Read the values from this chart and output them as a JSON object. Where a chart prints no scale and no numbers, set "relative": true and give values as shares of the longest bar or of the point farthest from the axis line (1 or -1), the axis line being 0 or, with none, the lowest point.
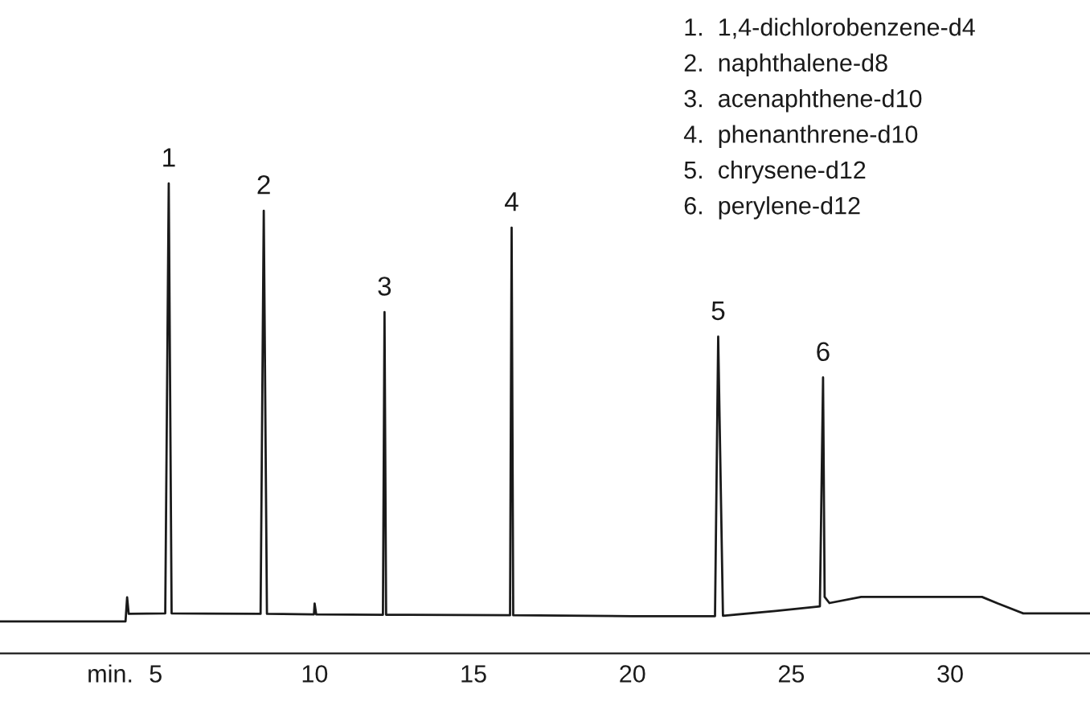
{
  "chart_data": {
    "type": "line",
    "relative": true,
    "xlabel": "min.",
    "xlim": [
      0.1,
      34.4
    ],
    "xticks": [
      5,
      10,
      15,
      20,
      25,
      30
    ],
    "tick_labels": "x",
    "grid": false,
    "marker": "none",
    "line_style": "solid",
    "series": [
      {
        "color": "#1a1a1a",
        "x": [
          0.1,
          4.05,
          4.1,
          4.15,
          5.3,
          5.41,
          5.5,
          8.3,
          8.4,
          8.5,
          9.98,
          10.0,
          10.05,
          12.15,
          12.2,
          12.25,
          16.15,
          16.2,
          16.25,
          20.0,
          22.6,
          22.7,
          22.85,
          24.5,
          25.9,
          26.0,
          26.05,
          26.2,
          27.2,
          31.0,
          31.5,
          32.3,
          34.4
        ],
        "values": [
          0.068,
          0.068,
          0.119,
          0.084,
          0.085,
          1.0,
          0.085,
          0.084,
          0.942,
          0.084,
          0.083,
          0.106,
          0.083,
          0.082,
          0.726,
          0.082,
          0.081,
          0.906,
          0.081,
          0.079,
          0.079,
          0.674,
          0.08,
          0.09,
          0.1,
          0.587,
          0.12,
          0.107,
          0.12,
          0.12,
          0.106,
          0.085,
          0.085
        ]
      }
    ],
    "annotations": [
      {
        "text": "1",
        "x": 5.41,
        "y": 1.0
      },
      {
        "text": "2",
        "x": 8.4,
        "y": 0.942
      },
      {
        "text": "3",
        "x": 12.2,
        "y": 0.726
      },
      {
        "text": "4",
        "x": 16.2,
        "y": 0.906
      },
      {
        "text": "5",
        "x": 22.7,
        "y": 0.674
      },
      {
        "text": "6",
        "x": 26.0,
        "y": 0.587
      },
      "1.  1,4-dichlorobenzene-d4",
      "2.  naphthalene-d8",
      "3.  acenaphthene-d10",
      "4.  phenanthrene-d10",
      "5.  chrysene-d12",
      "6.  perylene-d12"
    ]
  }
}
